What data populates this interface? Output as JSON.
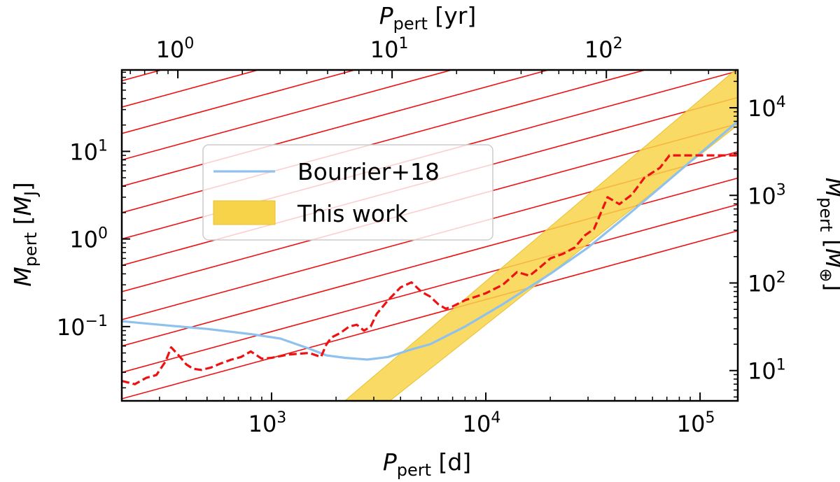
{
  "chart_data": {
    "type": "line",
    "x_axis": {
      "label_main": "P",
      "label_sub": "pert",
      "label_unit": " [d]",
      "scale": "log",
      "lim": [
        200,
        150000
      ],
      "ticks": [
        {
          "value": 1000,
          "base": "10",
          "exp": "3"
        },
        {
          "value": 10000,
          "base": "10",
          "exp": "4"
        },
        {
          "value": 100000,
          "base": "10",
          "exp": "5"
        }
      ]
    },
    "x_top_axis": {
      "label_main": "P",
      "label_sub": "pert",
      "label_unit": " [yr]",
      "scale": "log",
      "ticks": [
        {
          "value": 1,
          "base": "10",
          "exp": "0"
        },
        {
          "value": 10,
          "base": "10",
          "exp": "1"
        },
        {
          "value": 100,
          "base": "10",
          "exp": "2"
        }
      ]
    },
    "y_axis": {
      "label_main": "M",
      "label_sub": "pert",
      "label_unit_pre": " [",
      "label_unit_sym": "M",
      "label_unit_sub": "J",
      "label_unit_post": "]",
      "scale": "log",
      "lim": [
        0.0142,
        85
      ],
      "ticks": [
        {
          "value": 0.1,
          "base": "10",
          "exp": "−1"
        },
        {
          "value": 1,
          "base": "10",
          "exp": "0"
        },
        {
          "value": 10,
          "base": "10",
          "exp": "1"
        }
      ]
    },
    "y_right_axis": {
      "label_main": "M",
      "label_sub": "pert",
      "label_unit_pre": " [",
      "label_unit_sym": "M",
      "label_unit_sub": "⊕",
      "label_unit_post": "]",
      "scale": "log",
      "ticks": [
        {
          "value": 10,
          "base": "10",
          "exp": "1"
        },
        {
          "value": 100,
          "base": "10",
          "exp": "2"
        },
        {
          "value": 1000,
          "base": "10",
          "exp": "3"
        },
        {
          "value": 10000,
          "base": "10",
          "exp": "4"
        }
      ]
    },
    "series": [
      {
        "name": "Bourrier+18",
        "kind": "line",
        "color": "#8ec1ee",
        "x": [
          200,
          300,
          500,
          800,
          1100,
          1500,
          1800,
          2200,
          2800,
          3500,
          4500,
          5500,
          8000,
          12000,
          20000,
          30000,
          45000,
          70000,
          100000,
          150000
        ],
        "y": [
          0.115,
          0.105,
          0.094,
          0.082,
          0.073,
          0.056,
          0.047,
          0.044,
          0.042,
          0.045,
          0.055,
          0.063,
          0.1,
          0.18,
          0.4,
          0.8,
          1.8,
          4.5,
          9.5,
          22
        ]
      },
      {
        "name": "This work",
        "kind": "band",
        "color": "#f7d34a",
        "x": [
          2100,
          150000
        ],
        "y_lower": [
          0.014,
          20
        ],
        "y_upper": [
          0.014,
          90
        ]
      },
      {
        "name": "",
        "kind": "dashed-line",
        "color": "#ee1111",
        "x": [
          200,
          230,
          260,
          290,
          320,
          340,
          360,
          380,
          400,
          430,
          470,
          520,
          580,
          650,
          720,
          800,
          900,
          1000,
          1200,
          1500,
          1700,
          1800,
          1900,
          2100,
          2300,
          2500,
          2700,
          2900,
          3100,
          3500,
          4000,
          4500,
          5000,
          5500,
          6000,
          6500,
          7000,
          8000,
          9000,
          10000,
          12000,
          14000,
          16000,
          18000,
          20000,
          23000,
          26000,
          29000,
          32000,
          37000,
          42000,
          48000,
          55000,
          65000,
          72000,
          85000,
          100000,
          120000,
          150000
        ],
        "y": [
          0.024,
          0.022,
          0.026,
          0.028,
          0.04,
          0.058,
          0.05,
          0.043,
          0.037,
          0.033,
          0.032,
          0.034,
          0.038,
          0.042,
          0.045,
          0.052,
          0.043,
          0.044,
          0.048,
          0.05,
          0.045,
          0.062,
          0.075,
          0.085,
          0.1,
          0.105,
          0.09,
          0.1,
          0.14,
          0.2,
          0.28,
          0.32,
          0.25,
          0.22,
          0.18,
          0.16,
          0.17,
          0.2,
          0.22,
          0.24,
          0.3,
          0.42,
          0.38,
          0.48,
          0.6,
          0.68,
          0.8,
          1.1,
          1.3,
          3.0,
          2.5,
          3.2,
          5.0,
          6.5,
          9.0,
          9.0,
          9.0,
          9.0,
          9.0
        ]
      }
    ],
    "hatch": {
      "color": "#ee1111",
      "slope_decades": 0.6667,
      "x0": 200,
      "y0_values": [
        0.015,
        0.03,
        0.06,
        0.12,
        0.25,
        0.5,
        1,
        2,
        4,
        8,
        16,
        32,
        64,
        128,
        256,
        512,
        1024,
        2048,
        4096,
        8192
      ]
    },
    "legend": {
      "placement": "upper-left",
      "entries": [
        {
          "label": "Bourrier+18",
          "kind": "line",
          "color": "#8ec1ee"
        },
        {
          "label": "This work",
          "kind": "band",
          "color": "#f7d34a"
        }
      ]
    },
    "grid": false
  }
}
